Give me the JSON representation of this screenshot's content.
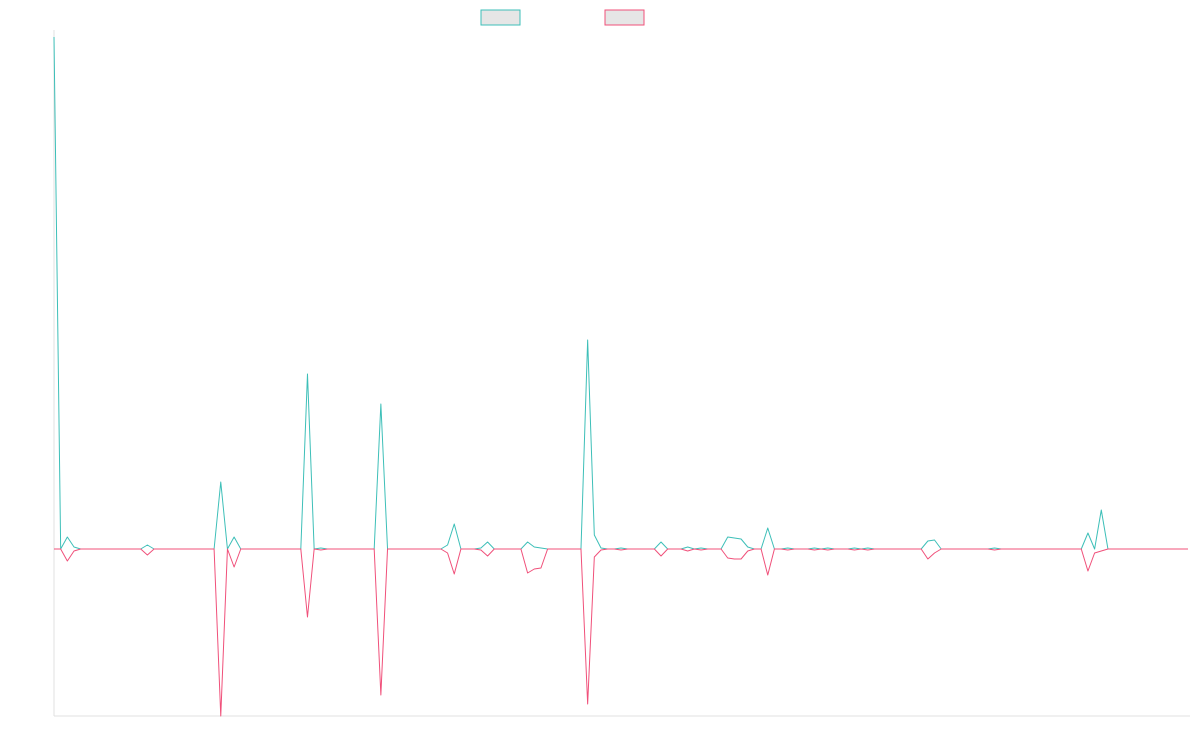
{
  "chart_data": {
    "type": "line",
    "categories": [
      null,
      null,
      null,
      null,
      null,
      null,
      null,
      null,
      null,
      null,
      null,
      null,
      null,
      null,
      null,
      null,
      null,
      null,
      null,
      null,
      null,
      null,
      null,
      null,
      null,
      null,
      null,
      null,
      null,
      null,
      null,
      null,
      null,
      null,
      null,
      null,
      null,
      null,
      null,
      null,
      null,
      null,
      null,
      null,
      null,
      null,
      null,
      null,
      null,
      null,
      null,
      null,
      null,
      null,
      null,
      null,
      null,
      null,
      null,
      null,
      null,
      null,
      null,
      null,
      null,
      null,
      null,
      null,
      null,
      null,
      null,
      null,
      null,
      null,
      null,
      null,
      null,
      null,
      null,
      null,
      null,
      null,
      null,
      null,
      null,
      null,
      null,
      null,
      null,
      null,
      null,
      null,
      null,
      null,
      null,
      null,
      null,
      null,
      null,
      null,
      null,
      null,
      null,
      null,
      null,
      null,
      null,
      null,
      null,
      null,
      null,
      null,
      null,
      null,
      null,
      null,
      null,
      null,
      null,
      null,
      null,
      null,
      null,
      null,
      null,
      null,
      null,
      null,
      null,
      null,
      null,
      null,
      null,
      null,
      null,
      null,
      null,
      null,
      null,
      null,
      null,
      null,
      null,
      null,
      null,
      null,
      null,
      null,
      null,
      null,
      null,
      null,
      null,
      null,
      null,
      null,
      null,
      null,
      null,
      null,
      null,
      null,
      null,
      null,
      null,
      null,
      null,
      null,
      null,
      null,
      null
    ],
    "series": [
      {
        "color": "#3dbfb8",
        "values": [
          512,
          0,
          12,
          2,
          0,
          0,
          0,
          0,
          0,
          0,
          0,
          0,
          0,
          0,
          4,
          0,
          0,
          0,
          0,
          0,
          0,
          0,
          0,
          0,
          0,
          67,
          0,
          12,
          0,
          0,
          0,
          0,
          0,
          0,
          0,
          0,
          0,
          0,
          175,
          0,
          1,
          0,
          0,
          0,
          0,
          0,
          0,
          0,
          0,
          145,
          0,
          0,
          0,
          0,
          0,
          0,
          0,
          0,
          0,
          4,
          25,
          0,
          0,
          0,
          1,
          7,
          0,
          0,
          0,
          0,
          0,
          7,
          2,
          1,
          0,
          0,
          0,
          0,
          0,
          0,
          209,
          14,
          1,
          0,
          0,
          1,
          0,
          0,
          0,
          0,
          0,
          7,
          0,
          0,
          0,
          2,
          0,
          1,
          0,
          0,
          0,
          12,
          11,
          10,
          2,
          0,
          0,
          21,
          0,
          0,
          1,
          0,
          0,
          0,
          1,
          0,
          1,
          0,
          0,
          0,
          1,
          0,
          1,
          0,
          0,
          0,
          0,
          0,
          0,
          0,
          0,
          8,
          9,
          0,
          0,
          0,
          0,
          0,
          0,
          0,
          0,
          1,
          0,
          0,
          0,
          0,
          0,
          0,
          0,
          0,
          0,
          0,
          0,
          0,
          0,
          16,
          0,
          39,
          0,
          0,
          0,
          0,
          0,
          0,
          0,
          0,
          0,
          0,
          0,
          0,
          0
        ]
      },
      {
        "color": "#f0507a",
        "values": [
          0,
          0,
          -12,
          -2,
          0,
          0,
          0,
          0,
          0,
          0,
          0,
          0,
          0,
          0,
          -6,
          0,
          0,
          0,
          0,
          0,
          0,
          0,
          0,
          0,
          0,
          -167,
          0,
          -18,
          0,
          0,
          0,
          0,
          0,
          0,
          0,
          0,
          0,
          0,
          -68,
          0,
          -1,
          0,
          0,
          0,
          0,
          0,
          0,
          0,
          0,
          -146,
          0,
          0,
          0,
          0,
          0,
          0,
          0,
          0,
          0,
          -4,
          -25,
          0,
          0,
          0,
          -1,
          -7,
          0,
          0,
          0,
          0,
          0,
          -24,
          -20,
          -19,
          0,
          0,
          0,
          0,
          0,
          0,
          -155,
          -8,
          -1,
          0,
          0,
          -1,
          0,
          0,
          0,
          0,
          0,
          -7,
          0,
          0,
          0,
          -2,
          0,
          -1,
          0,
          0,
          0,
          -9,
          -10,
          -10,
          -2,
          0,
          0,
          -26,
          0,
          0,
          -1,
          0,
          0,
          0,
          -1,
          0,
          -1,
          0,
          0,
          0,
          -1,
          0,
          -1,
          0,
          0,
          0,
          0,
          0,
          0,
          0,
          0,
          -10,
          -4,
          0,
          0,
          0,
          0,
          0,
          0,
          0,
          0,
          -1,
          0,
          0,
          0,
          0,
          0,
          0,
          0,
          0,
          0,
          0,
          0,
          0,
          0,
          -22,
          -4,
          -2,
          0,
          0,
          0,
          0,
          0,
          0,
          0,
          0,
          0,
          0,
          0,
          0,
          0
        ]
      }
    ],
    "ylim": [
      -167,
      512
    ]
  }
}
